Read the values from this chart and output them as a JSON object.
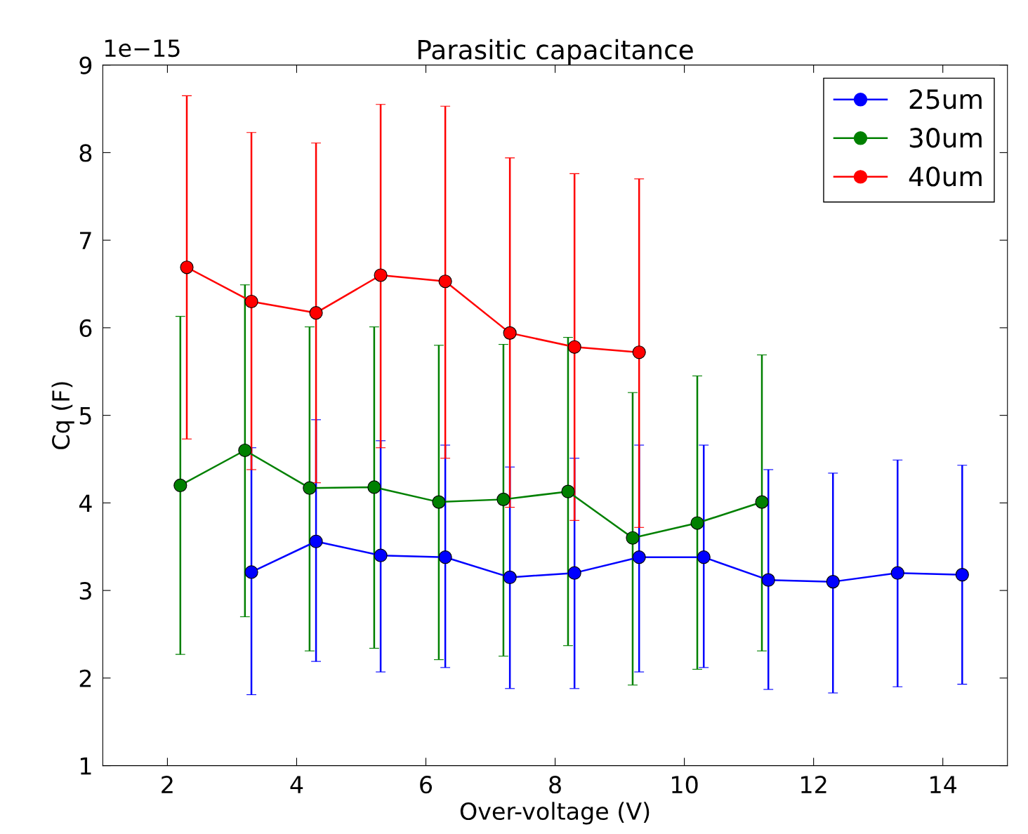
{
  "chart_data": {
    "type": "line",
    "title": "Parasitic capacitance",
    "xlabel": "Over-voltage (V)",
    "ylabel": "Cq (F)",
    "annotations": [
      "1e−15"
    ],
    "xlim": [
      1,
      15
    ],
    "xticks": [
      2,
      4,
      6,
      8,
      10,
      12,
      14
    ],
    "ylim": [
      1,
      9
    ],
    "yticks": [
      1,
      2,
      3,
      4,
      5,
      6,
      7,
      8,
      9
    ],
    "grid": false,
    "legend": "top right",
    "marker": "circle",
    "line_style": "solid",
    "series": [
      {
        "name": "25um",
        "color": "#0000ff",
        "x": [
          3.3,
          4.3,
          5.3,
          6.3,
          7.3,
          8.3,
          9.3,
          10.3,
          11.3,
          12.3,
          13.3,
          14.3
        ],
        "values": [
          3.21,
          3.56,
          3.4,
          3.38,
          3.15,
          3.2,
          3.38,
          3.38,
          3.12,
          3.1,
          3.2,
          3.18
        ],
        "errors": [
          [
            1.81,
            4.63
          ],
          [
            2.19,
            4.95
          ],
          [
            2.07,
            4.71
          ],
          [
            2.12,
            4.66
          ],
          [
            1.88,
            4.41
          ],
          [
            1.88,
            4.51
          ],
          [
            2.07,
            4.66
          ],
          [
            2.12,
            4.66
          ],
          [
            1.87,
            4.38
          ],
          [
            1.83,
            4.34
          ],
          [
            1.9,
            4.49
          ],
          [
            1.93,
            4.43
          ]
        ]
      },
      {
        "name": "30um",
        "color": "#008000",
        "x": [
          2.2,
          3.2,
          4.2,
          5.2,
          6.2,
          7.2,
          8.2,
          9.2,
          10.2,
          11.2
        ],
        "values": [
          4.2,
          4.6,
          4.17,
          4.18,
          4.01,
          4.04,
          4.13,
          3.6,
          3.77,
          4.01
        ],
        "errors": [
          [
            2.27,
            6.13
          ],
          [
            2.7,
            6.49
          ],
          [
            2.31,
            6.01
          ],
          [
            2.34,
            6.01
          ],
          [
            2.21,
            5.8
          ],
          [
            2.25,
            5.81
          ],
          [
            2.37,
            5.89
          ],
          [
            1.92,
            5.26
          ],
          [
            2.1,
            5.45
          ],
          [
            2.31,
            5.69
          ]
        ]
      },
      {
        "name": "40um",
        "color": "#ff0000",
        "x": [
          2.3,
          3.3,
          4.3,
          5.3,
          6.3,
          7.3,
          8.3,
          9.3
        ],
        "values": [
          6.69,
          6.3,
          6.17,
          6.6,
          6.53,
          5.94,
          5.78,
          5.72
        ],
        "errors": [
          [
            4.73,
            8.65
          ],
          [
            4.38,
            8.23
          ],
          [
            4.23,
            8.11
          ],
          [
            4.63,
            8.55
          ],
          [
            4.51,
            8.53
          ],
          [
            3.95,
            7.94
          ],
          [
            3.8,
            7.76
          ],
          [
            3.72,
            7.7
          ]
        ]
      }
    ]
  }
}
